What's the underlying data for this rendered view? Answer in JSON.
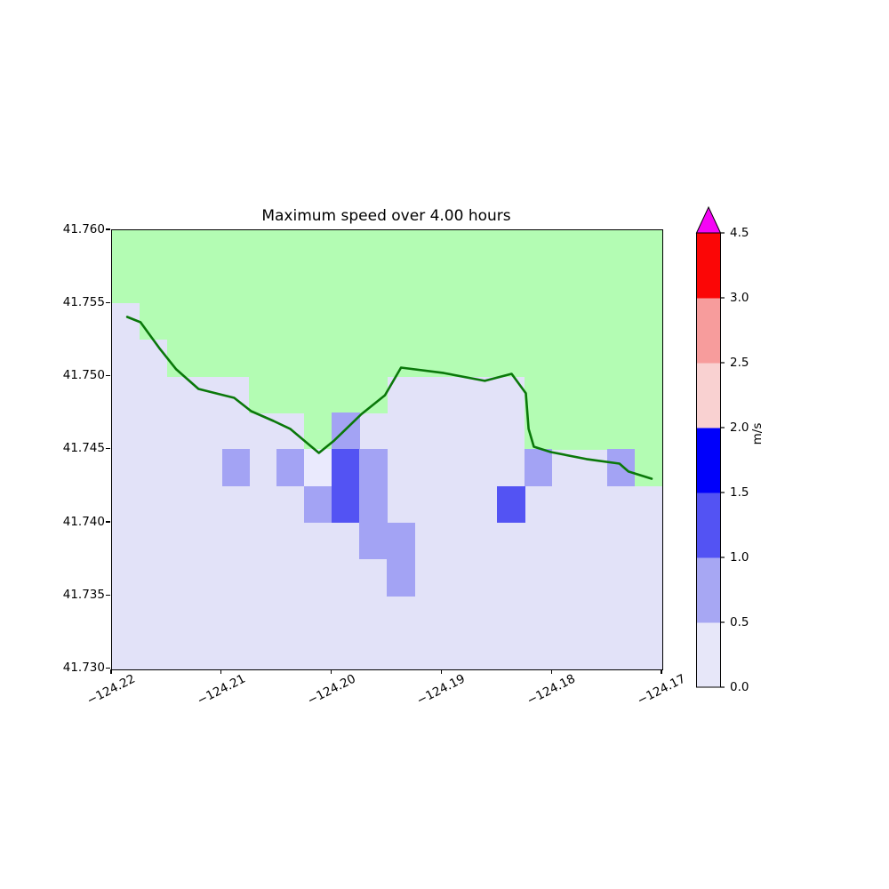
{
  "title": "Maximum speed over 4.00 hours",
  "axes": {
    "lon_min": -124.22,
    "lon_max": -124.17,
    "lat_min": 41.73,
    "lat_max": 41.76,
    "x_ticks": [
      {
        "lon": -124.22,
        "label": "−124.22"
      },
      {
        "lon": -124.21,
        "label": "−124.21"
      },
      {
        "lon": -124.2,
        "label": "−124.20"
      },
      {
        "lon": -124.19,
        "label": "−124.19"
      },
      {
        "lon": -124.18,
        "label": "−124.18"
      },
      {
        "lon": -124.17,
        "label": "−124.17"
      }
    ],
    "y_ticks": [
      {
        "lat": 41.73,
        "label": "41.730"
      },
      {
        "lat": 41.735,
        "label": "41.735"
      },
      {
        "lat": 41.74,
        "label": "41.740"
      },
      {
        "lat": 41.745,
        "label": "41.745"
      },
      {
        "lat": 41.75,
        "label": "41.750"
      },
      {
        "lat": 41.755,
        "label": "41.755"
      },
      {
        "lat": 41.76,
        "label": "41.760"
      }
    ]
  },
  "colorbar": {
    "label": "m/s",
    "boundaries": [
      0.0,
      0.5,
      1.0,
      1.5,
      2.0,
      2.5,
      3.0,
      4.5
    ],
    "tick_labels": [
      "0.0",
      "0.5",
      "1.0",
      "1.5",
      "2.0",
      "2.5",
      "3.0",
      "4.5"
    ],
    "segment_colors": [
      "#e7e7f9",
      "#a7a7f3",
      "#5353f3",
      "#0000fb",
      "#f9d1d1",
      "#f79c9c",
      "#fb0606"
    ],
    "over_color": "#f505f5"
  },
  "chart_data": {
    "type": "heatmap",
    "title": "Maximum speed over 4.00 hours",
    "units": "m/s",
    "cell_deg": 0.0025,
    "colors": {
      "water": "#e2e2f8",
      "land": "#b3fcb3",
      "coastline": "#0a780a",
      "bins": {
        "0.0-0.5": "#eaeafd",
        "0.5-1.0": "#a3a3f4",
        "1.0-1.5": "#5353f3"
      }
    },
    "land_boundary_lat_per_column": [
      41.755,
      41.7525,
      41.75,
      41.75,
      41.75,
      41.7475,
      41.7475,
      41.745,
      41.7475,
      41.7475,
      41.75,
      41.75,
      41.75,
      41.75,
      41.75,
      41.745,
      41.745,
      41.745,
      41.745,
      41.7425
    ],
    "cells": [
      {
        "lon": -124.2,
        "lat": 41.745,
        "bin": "0.5-1.0"
      },
      {
        "lon": -124.21,
        "lat": 41.7425,
        "bin": "0.5-1.0"
      },
      {
        "lon": -124.205,
        "lat": 41.7425,
        "bin": "0.5-1.0"
      },
      {
        "lon": -124.2025,
        "lat": 41.7425,
        "bin": "0.0-0.5"
      },
      {
        "lon": -124.2,
        "lat": 41.7425,
        "bin": "1.0-1.5"
      },
      {
        "lon": -124.1975,
        "lat": 41.7425,
        "bin": "0.5-1.0"
      },
      {
        "lon": -124.1825,
        "lat": 41.7425,
        "bin": "0.5-1.0"
      },
      {
        "lon": -124.175,
        "lat": 41.7425,
        "bin": "0.5-1.0"
      },
      {
        "lon": -124.2025,
        "lat": 41.74,
        "bin": "0.5-1.0"
      },
      {
        "lon": -124.2,
        "lat": 41.74,
        "bin": "1.0-1.5"
      },
      {
        "lon": -124.1975,
        "lat": 41.74,
        "bin": "0.5-1.0"
      },
      {
        "lon": -124.185,
        "lat": 41.74,
        "bin": "1.0-1.5"
      },
      {
        "lon": -124.1975,
        "lat": 41.7375,
        "bin": "0.5-1.0"
      },
      {
        "lon": -124.195,
        "lat": 41.7375,
        "bin": "0.5-1.0"
      },
      {
        "lon": -124.195,
        "lat": 41.735,
        "bin": "0.5-1.0"
      }
    ],
    "coastline": [
      [
        -124.21862,
        41.75407
      ],
      [
        -124.21741,
        41.75371
      ],
      [
        -124.21571,
        41.75195
      ],
      [
        -124.21417,
        41.75049
      ],
      [
        -124.21214,
        41.74915
      ],
      [
        -124.2089,
        41.74854
      ],
      [
        -124.20736,
        41.74763
      ],
      [
        -124.20533,
        41.74696
      ],
      [
        -124.20379,
        41.74641
      ],
      [
        -124.2012,
        41.74477
      ],
      [
        -124.19982,
        41.74562
      ],
      [
        -124.19739,
        41.74739
      ],
      [
        -124.1952,
        41.74872
      ],
      [
        -124.19374,
        41.75061
      ],
      [
        -124.18985,
        41.75024
      ],
      [
        -124.18613,
        41.7497
      ],
      [
        -124.18369,
        41.75018
      ],
      [
        -124.1824,
        41.74885
      ],
      [
        -124.18215,
        41.74642
      ],
      [
        -124.18167,
        41.7452
      ],
      [
        -124.18013,
        41.74483
      ],
      [
        -124.17689,
        41.74435
      ],
      [
        -124.17389,
        41.74404
      ],
      [
        -124.17308,
        41.7435
      ],
      [
        -124.17097,
        41.74301
      ]
    ]
  }
}
